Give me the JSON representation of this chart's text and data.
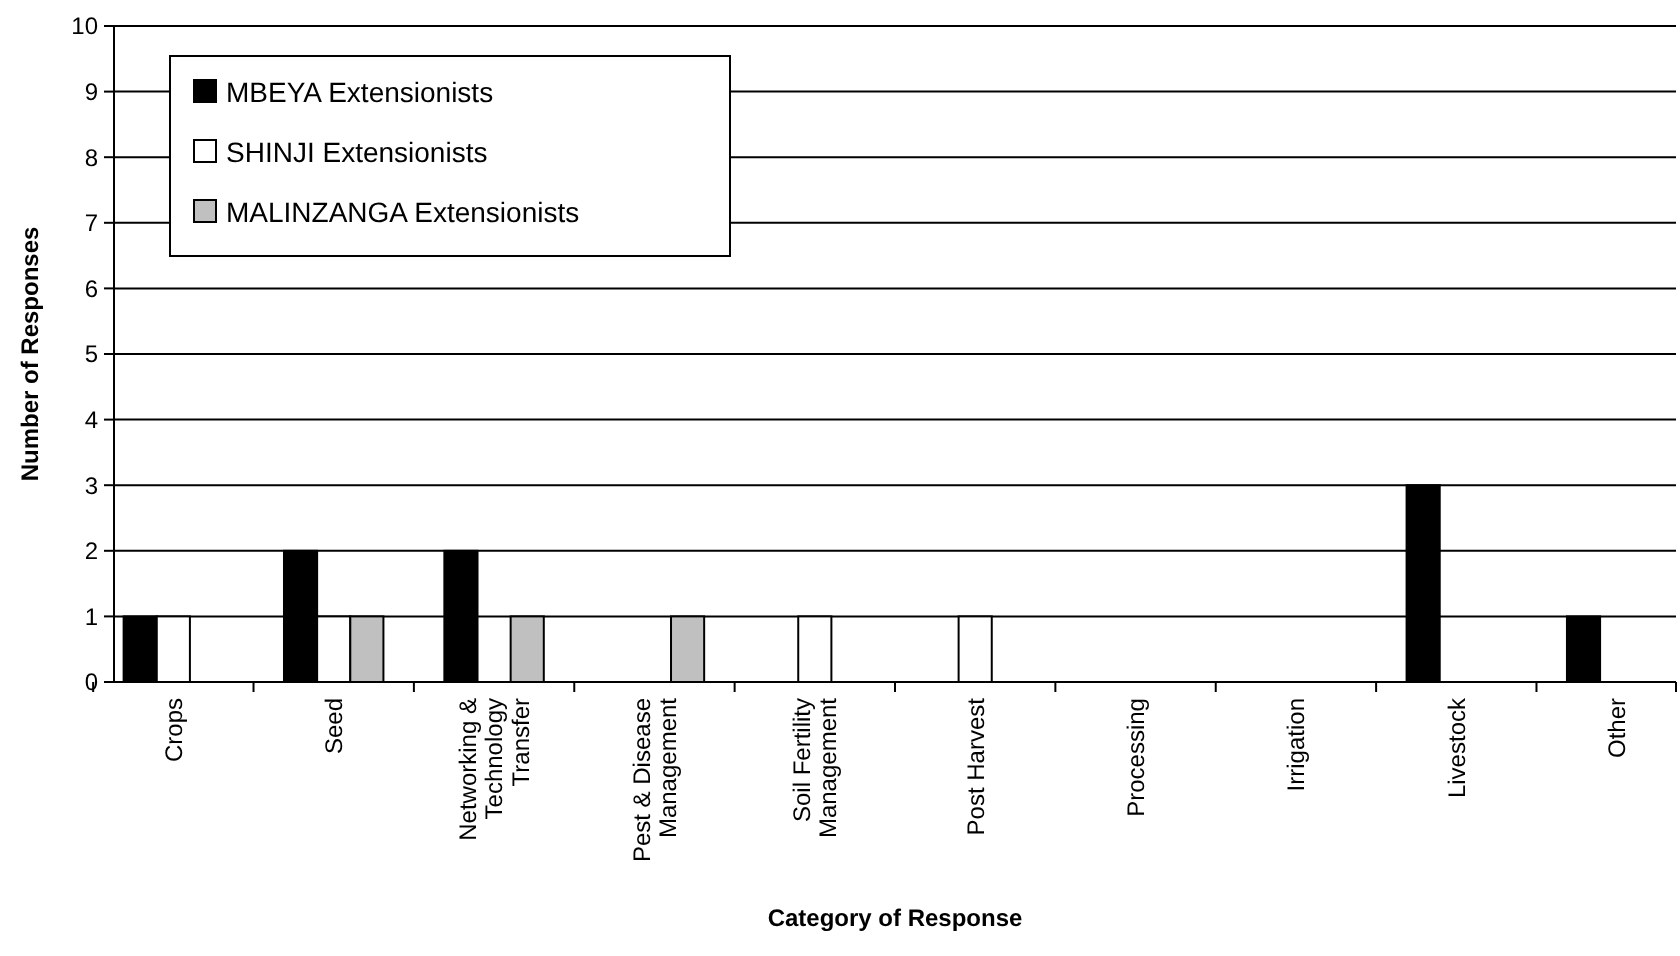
{
  "chart_data": {
    "type": "bar",
    "xlabel": "Category of Response",
    "ylabel": "Number of Responses",
    "categories": [
      "Crops",
      "Seed",
      "Networking & Technology Transfer",
      "Pest & Disease Management",
      "Soil Fertility Management",
      "Post Harvest",
      "Processing",
      "Irrigation",
      "Livestock",
      "Other"
    ],
    "series": [
      {
        "name": "MBEYA Extensionists",
        "color": "#000000",
        "values": [
          1,
          2,
          2,
          0,
          0,
          0,
          0,
          0,
          3,
          1
        ]
      },
      {
        "name": "SHINJI Extensionists",
        "color": "#ffffff",
        "values": [
          1,
          1,
          0,
          0,
          1,
          1,
          0,
          0,
          0,
          0
        ]
      },
      {
        "name": "MALINZANGA Extensionists",
        "color": "#c0c0c0",
        "values": [
          0,
          1,
          1,
          1,
          0,
          0,
          0,
          0,
          0,
          0
        ]
      }
    ],
    "ylim": [
      0,
      10
    ],
    "yticks": [
      0,
      1,
      2,
      3,
      4,
      5,
      6,
      7,
      8,
      9,
      10
    ],
    "grid": "y",
    "legend": "top left"
  }
}
